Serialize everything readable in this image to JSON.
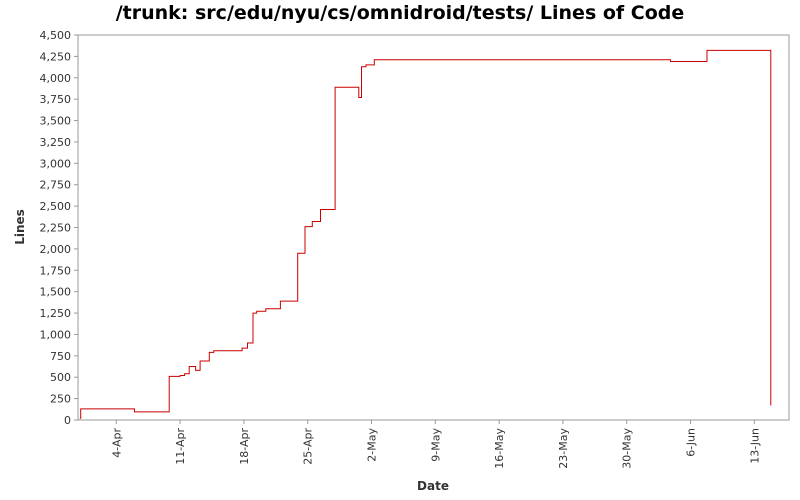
{
  "chart_data": {
    "type": "line",
    "title": "/trunk: src/edu/nyu/cs/omnidroid/tests/ Lines of Code",
    "xlabel": "Date",
    "ylabel": "Lines",
    "ylim": [
      0,
      4500
    ],
    "y_ticks": [
      0,
      250,
      500,
      750,
      1000,
      1250,
      1500,
      1750,
      2000,
      2250,
      2500,
      2750,
      3000,
      3250,
      3500,
      3750,
      4000,
      4250,
      4500
    ],
    "x_ticks": [
      {
        "day": 4,
        "label": "4-Apr"
      },
      {
        "day": 11,
        "label": "11-Apr"
      },
      {
        "day": 18,
        "label": "18-Apr"
      },
      {
        "day": 25,
        "label": "25-Apr"
      },
      {
        "day": 32,
        "label": "2-May"
      },
      {
        "day": 39,
        "label": "9-May"
      },
      {
        "day": 46,
        "label": "16-May"
      },
      {
        "day": 53,
        "label": "23-May"
      },
      {
        "day": 60,
        "label": "30-May"
      },
      {
        "day": 67,
        "label": "6-Jun"
      },
      {
        "day": 74,
        "label": "13-Jun"
      }
    ],
    "xlim": [
      -0.2,
      77.8
    ],
    "line_style": "step",
    "grid": false,
    "legend": "none",
    "series": [
      {
        "color": "#cc0000",
        "points": [
          [
            0,
            20
          ],
          [
            0.1,
            130
          ],
          [
            6.0,
            95
          ],
          [
            9.8,
            510
          ],
          [
            11.0,
            520
          ],
          [
            11.5,
            540
          ],
          [
            12.0,
            625
          ],
          [
            12.7,
            580
          ],
          [
            13.2,
            690
          ],
          [
            14.2,
            790
          ],
          [
            14.7,
            810
          ],
          [
            17.8,
            840
          ],
          [
            18.4,
            900
          ],
          [
            19.0,
            1250
          ],
          [
            19.4,
            1270
          ],
          [
            20.4,
            1300
          ],
          [
            22.0,
            1390
          ],
          [
            23.9,
            1950
          ],
          [
            24.7,
            2260
          ],
          [
            25.5,
            2320
          ],
          [
            26.4,
            2460
          ],
          [
            28.0,
            3890
          ],
          [
            30.6,
            3770
          ],
          [
            30.9,
            4130
          ],
          [
            31.4,
            4150
          ],
          [
            32.3,
            4210
          ],
          [
            64.8,
            4190
          ],
          [
            68.8,
            4320
          ],
          [
            75.8,
            170
          ]
        ]
      }
    ]
  }
}
